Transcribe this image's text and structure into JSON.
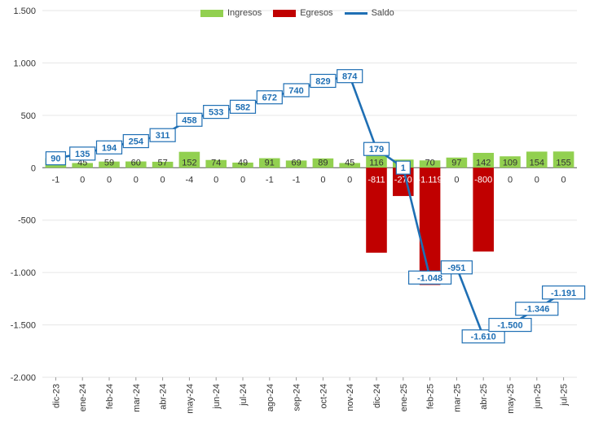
{
  "chart_data": {
    "type": "bar",
    "categories": [
      "dic-23",
      "ene-24",
      "feb-24",
      "mar-24",
      "abr-24",
      "may-24",
      "jun-24",
      "jul-24",
      "ago-24",
      "sep-24",
      "oct-24",
      "nov-24",
      "dic-24",
      "ene-25",
      "feb-25",
      "mar-25",
      "abr-25",
      "may-25",
      "jun-25",
      "jul-25"
    ],
    "series": [
      {
        "name": "Ingresos",
        "kind": "bar",
        "color": "#92d050",
        "values": [
          91,
          45,
          59,
          60,
          57,
          152,
          74,
          49,
          91,
          69,
          89,
          45,
          116,
          78,
          70,
          97,
          142,
          109,
          154,
          155
        ],
        "labels": [
          "",
          "45",
          "59",
          "60",
          "57",
          "152",
          "74",
          "49",
          "91",
          "69",
          "89",
          "45",
          "116",
          "",
          "70",
          "97",
          "142",
          "109",
          "154",
          "155"
        ]
      },
      {
        "name": "Egresos",
        "kind": "bar",
        "color": "#c00000",
        "values": [
          -1,
          0,
          0,
          0,
          0,
          -4,
          0,
          0,
          -1,
          -1,
          0,
          0,
          -811,
          -270,
          -1119,
          0,
          -800,
          0,
          0,
          0
        ],
        "labels": [
          "-1",
          "0",
          "0",
          "0",
          "0",
          "-4",
          "0",
          "0",
          "-1",
          "-1",
          "0",
          "0",
          "-811",
          "-270",
          "-1.119",
          "0",
          "-800",
          "0",
          "0",
          "0"
        ]
      },
      {
        "name": "Saldo",
        "kind": "line",
        "color": "#1f6fb4",
        "values": [
          90,
          135,
          194,
          254,
          311,
          458,
          533,
          582,
          672,
          740,
          829,
          874,
          179,
          1,
          -1048,
          -951,
          -1610,
          -1500,
          -1346,
          -1191
        ],
        "labels": [
          "90",
          "135",
          "194",
          "254",
          "311",
          "458",
          "533",
          "582",
          "672",
          "740",
          "829",
          "874",
          "179",
          "1",
          "-1.048",
          "-951",
          "-1.610",
          "-1.500",
          "-1.346",
          "-1.191"
        ]
      }
    ],
    "yticks": [
      1500,
      1000,
      500,
      0,
      -500,
      -1000,
      -1500,
      -2000
    ],
    "ytick_labels": [
      "1.500",
      "1.000",
      "500",
      "0",
      "-500",
      "-1.000",
      "-1.500",
      "-2.000"
    ],
    "ylim": [
      -2000,
      1500
    ],
    "grid": true,
    "legend_position": "top-center",
    "title": "",
    "xlabel": "",
    "ylabel": ""
  }
}
